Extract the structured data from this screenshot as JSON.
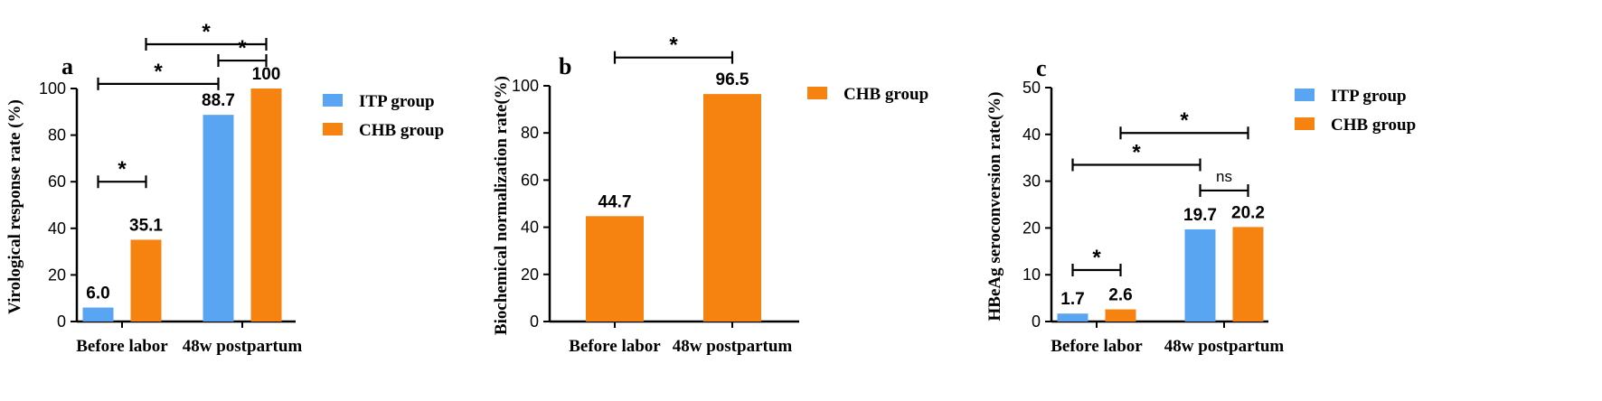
{
  "colors": {
    "itp": "#5aa5f2",
    "chb": "#f6820f",
    "axis": "#000000"
  },
  "chart_data": [
    {
      "type": "bar",
      "panel": "a",
      "categories": [
        "Before labor",
        "48w postpartum"
      ],
      "series": [
        {
          "name": "ITP group",
          "color": "#5aa5f2",
          "values": [
            6.0,
            88.7
          ],
          "labels": [
            "6.0",
            "88.7"
          ]
        },
        {
          "name": "CHB group",
          "color": "#f6820f",
          "values": [
            35.1,
            100
          ],
          "labels": [
            "35.1",
            "100"
          ]
        }
      ],
      "ylabel": "Virological response rate (%)",
      "ylim": [
        0,
        100
      ],
      "yticks": [
        0,
        20,
        40,
        60,
        80,
        100
      ],
      "legend": "right",
      "significance": [
        {
          "from": [
            0,
            0
          ],
          "to": [
            0,
            1
          ],
          "label": "*",
          "y": 60
        },
        {
          "from": [
            0,
            0
          ],
          "to": [
            1,
            0
          ],
          "label": "*",
          "y": 102
        },
        {
          "from": [
            1,
            0
          ],
          "to": [
            1,
            1
          ],
          "label": "*",
          "y": 112
        },
        {
          "from": [
            0,
            1
          ],
          "to": [
            1,
            1
          ],
          "label": "*",
          "y": 119
        }
      ]
    },
    {
      "type": "bar",
      "panel": "b",
      "categories": [
        "Before labor",
        "48w postpartum"
      ],
      "series": [
        {
          "name": "CHB group",
          "color": "#f6820f",
          "values": [
            44.7,
            96.5
          ],
          "labels": [
            "44.7",
            "96.5"
          ]
        }
      ],
      "ylabel": "Biochemical normalization rate(%)",
      "ylim": [
        0,
        100
      ],
      "yticks": [
        0,
        20,
        40,
        60,
        80,
        100
      ],
      "legend": "right",
      "significance": [
        {
          "from": [
            0,
            0
          ],
          "to": [
            1,
            0
          ],
          "label": "*",
          "y": 112
        }
      ]
    },
    {
      "type": "bar",
      "panel": "c",
      "categories": [
        "Before labor",
        "48w postpartum"
      ],
      "series": [
        {
          "name": "ITP group",
          "color": "#5aa5f2",
          "values": [
            1.7,
            19.7
          ],
          "labels": [
            "1.7",
            "19.7"
          ]
        },
        {
          "name": "CHB group",
          "color": "#f6820f",
          "values": [
            2.6,
            20.2
          ],
          "labels": [
            "2.6",
            "20.2"
          ]
        }
      ],
      "ylabel": "HBeAg seroconversion rate(%)",
      "ylim": [
        0,
        50
      ],
      "yticks": [
        0,
        10,
        20,
        30,
        40,
        50
      ],
      "legend": "right",
      "significance": [
        {
          "from": [
            0,
            0
          ],
          "to": [
            0,
            1
          ],
          "label": "*",
          "y": 11
        },
        {
          "from": [
            1,
            0
          ],
          "to": [
            1,
            1
          ],
          "label": "ns",
          "y": 28
        },
        {
          "from": [
            0,
            0
          ],
          "to": [
            1,
            0
          ],
          "label": "*",
          "y": 33.5
        },
        {
          "from": [
            0,
            1
          ],
          "to": [
            1,
            1
          ],
          "label": "*",
          "y": 40.3
        }
      ]
    }
  ]
}
